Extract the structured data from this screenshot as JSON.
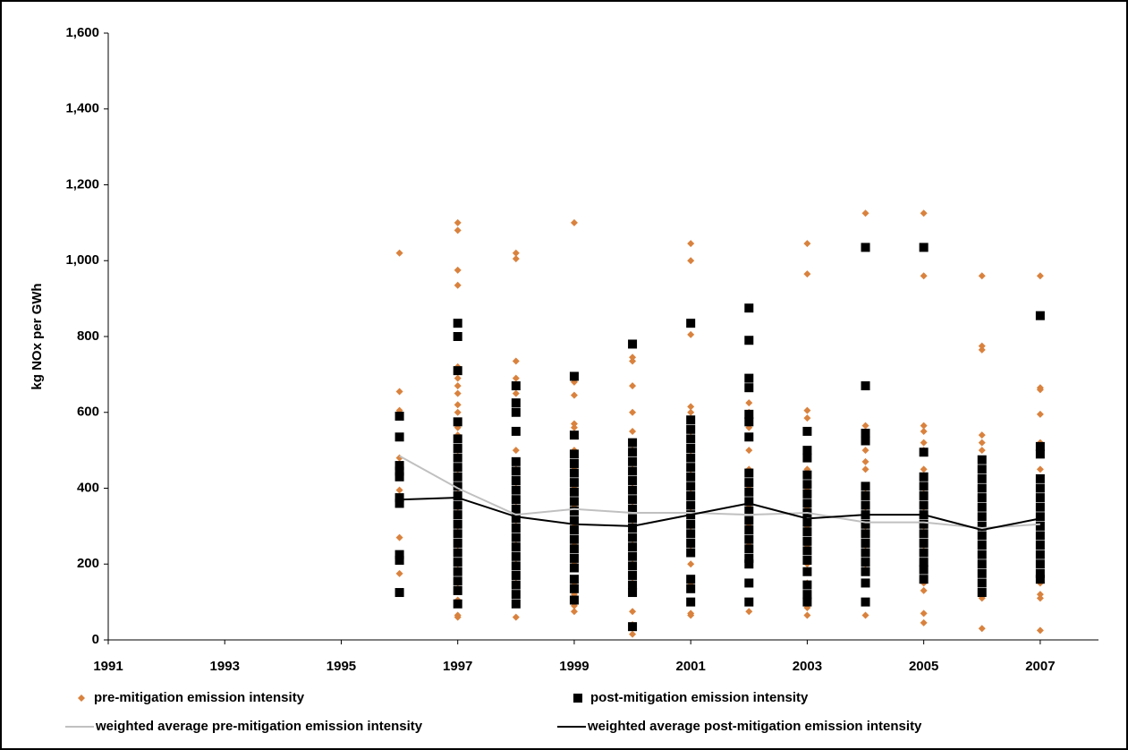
{
  "chart_data": {
    "type": "scatter",
    "ylabel": "kg NOx per GWh",
    "xlim": [
      1991,
      2008
    ],
    "xticks": [
      1991,
      1993,
      1995,
      1997,
      1999,
      2001,
      2003,
      2005,
      2007
    ],
    "ylim": [
      0,
      1600
    ],
    "yticks": [
      0,
      200,
      400,
      600,
      800,
      {
        "value": 1000,
        "label": "1,000"
      },
      {
        "value": 1200,
        "label": "1,200"
      },
      {
        "value": 1400,
        "label": "1,400"
      },
      {
        "value": 1600,
        "label": "1,600"
      }
    ],
    "grid": false,
    "legend": "bottom",
    "series": [
      {
        "name": "pre-mitigation emission intensity",
        "color": "#d9823e",
        "marker": "diamond",
        "groups": [
          {
            "x": 1996,
            "values": [
              1020,
              655,
              605,
              590,
              480,
              460,
              445,
              395,
              375,
              270,
              215,
              175
            ]
          },
          {
            "x": 1997,
            "values": [
              1100,
              1080,
              975,
              935,
              720,
              690,
              670,
              650,
              620,
              600,
              560,
              540,
              500,
              450,
              400,
              350,
              300,
              250,
              200,
              150,
              105,
              65,
              60
            ]
          },
          {
            "x": 1998,
            "values": [
              1020,
              1005,
              735,
              690,
              650,
              600,
              550,
              500,
              450,
              400,
              350,
              300,
              250,
              200,
              150,
              120,
              95,
              60
            ]
          },
          {
            "x": 1999,
            "values": [
              1100,
              680,
              645,
              570,
              560,
              500,
              450,
              400,
              350,
              300,
              250,
              200,
              150,
              120,
              90,
              75
            ]
          },
          {
            "x": 2000,
            "values": [
              745,
              735,
              670,
              600,
              550,
              500,
              450,
              400,
              350,
              300,
              250,
              200,
              150,
              75,
              40,
              15
            ]
          },
          {
            "x": 2001,
            "values": [
              1045,
              1000,
              805,
              615,
              600,
              550,
              500,
              450,
              400,
              350,
              300,
              250,
              200,
              150,
              100,
              70,
              65
            ]
          },
          {
            "x": 2002,
            "values": [
              625,
              600,
              560,
              500,
              450,
              400,
              350,
              300,
              250,
              200,
              150,
              100,
              75
            ]
          },
          {
            "x": 2003,
            "values": [
              1045,
              965,
              605,
              585,
              550,
              500,
              450,
              400,
              350,
              300,
              250,
              200,
              150,
              100,
              85,
              65
            ]
          },
          {
            "x": 2004,
            "values": [
              1125,
              565,
              540,
              500,
              470,
              450,
              400,
              350,
              300,
              250,
              200,
              150,
              100,
              65
            ]
          },
          {
            "x": 2005,
            "values": [
              1125,
              960,
              565,
              550,
              520,
              500,
              450,
              400,
              350,
              300,
              250,
              200,
              150,
              130,
              70,
              45
            ]
          },
          {
            "x": 2006,
            "values": [
              960,
              775,
              765,
              540,
              520,
              500,
              450,
              400,
              350,
              300,
              250,
              200,
              150,
              110,
              30
            ]
          },
          {
            "x": 2007,
            "values": [
              960,
              665,
              660,
              595,
              520,
              450,
              400,
              350,
              300,
              250,
              200,
              150,
              120,
              110,
              25
            ]
          }
        ]
      },
      {
        "name": "post-mitigation emission intensity",
        "color": "#000000",
        "marker": "square",
        "groups": [
          {
            "x": 1996,
            "values": [
              590,
              535,
              460,
              445,
              430,
              375,
              360,
              225,
              210,
              125
            ]
          },
          {
            "x": 1997,
            "values": [
              835,
              800,
              710,
              575,
              530,
              505,
              480,
              455,
              430,
              405,
              380,
              355,
              330,
              305,
              280,
              255,
              230,
              205,
              180,
              155,
              130,
              95
            ]
          },
          {
            "x": 1998,
            "values": [
              670,
              625,
              600,
              550,
              470,
              445,
              420,
              395,
              370,
              345,
              320,
              295,
              270,
              245,
              220,
              195,
              170,
              145,
              120,
              95
            ]
          },
          {
            "x": 1999,
            "values": [
              695,
              540,
              490,
              465,
              440,
              415,
              390,
              365,
              340,
              315,
              290,
              265,
              240,
              215,
              190,
              160,
              135,
              105
            ]
          },
          {
            "x": 2000,
            "values": [
              780,
              520,
              495,
              470,
              445,
              420,
              395,
              370,
              345,
              320,
              295,
              270,
              245,
              220,
              195,
              170,
              145,
              125,
              35
            ]
          },
          {
            "x": 2001,
            "values": [
              835,
              580,
              555,
              530,
              505,
              480,
              455,
              430,
              405,
              380,
              355,
              330,
              305,
              280,
              255,
              230,
              160,
              135,
              100
            ]
          },
          {
            "x": 2002,
            "values": [
              875,
              790,
              690,
              665,
              595,
              575,
              535,
              440,
              415,
              390,
              365,
              340,
              315,
              290,
              265,
              240,
              215,
              200,
              150,
              100
            ]
          },
          {
            "x": 2003,
            "values": [
              550,
              500,
              480,
              435,
              410,
              385,
              360,
              335,
              310,
              285,
              260,
              235,
              210,
              180,
              145,
              120,
              100
            ]
          },
          {
            "x": 2004,
            "values": [
              1035,
              670,
              545,
              525,
              405,
              380,
              355,
              330,
              305,
              280,
              255,
              230,
              205,
              180,
              150,
              100
            ]
          },
          {
            "x": 2005,
            "values": [
              1035,
              495,
              430,
              405,
              380,
              355,
              330,
              305,
              280,
              255,
              230,
              205,
              185,
              160
            ]
          },
          {
            "x": 2006,
            "values": [
              475,
              450,
              425,
              400,
              375,
              350,
              325,
              300,
              275,
              250,
              225,
              200,
              175,
              150,
              125
            ]
          },
          {
            "x": 2007,
            "values": [
              855,
              510,
              490,
              425,
              400,
              375,
              350,
              325,
              300,
              275,
              250,
              225,
              200,
              175,
              160
            ]
          }
        ]
      },
      {
        "name": "weighted average pre-mitigation emission intensity",
        "color": "#c0c0c0",
        "marker": "line",
        "x": [
          1996,
          1997,
          1998,
          1999,
          2000,
          2001,
          2002,
          2003,
          2004,
          2005,
          2006,
          2007
        ],
        "values": [
          485,
          400,
          330,
          345,
          335,
          335,
          330,
          335,
          310,
          310,
          295,
          305
        ]
      },
      {
        "name": "weighted average post-mitigation emission intensity",
        "color": "#000000",
        "marker": "line",
        "x": [
          1996,
          1997,
          1998,
          1999,
          2000,
          2001,
          2002,
          2003,
          2004,
          2005,
          2006,
          2007
        ],
        "values": [
          370,
          375,
          325,
          305,
          300,
          330,
          360,
          320,
          330,
          330,
          290,
          320
        ]
      }
    ]
  }
}
